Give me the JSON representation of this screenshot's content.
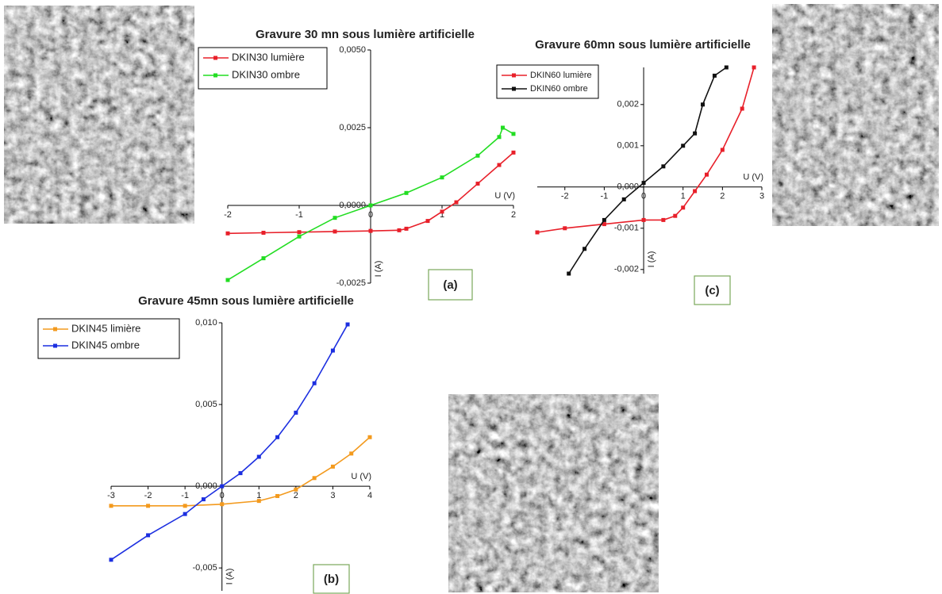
{
  "chart_data": [
    {
      "type": "line",
      "title": "Gravure 30 mn sous lumière artificielle",
      "panel_label": "(a)",
      "x_label": "U (V)",
      "y_label": "I (A)",
      "xlim": [
        -2,
        2
      ],
      "ylim": [
        -0.0025,
        0.005
      ],
      "xticks": [
        -2,
        -1,
        0,
        1,
        2
      ],
      "yticks": [
        {
          "value": -0.0025,
          "label": "-0,0025"
        },
        {
          "value": 0,
          "label": "0,0000"
        },
        {
          "value": 0.0025,
          "label": "0,0025"
        },
        {
          "value": 0.005,
          "label": "0,0050"
        }
      ],
      "series": [
        {
          "name": "DKIN30 lumière",
          "color": "#e8202a",
          "x": [
            -2,
            -1.5,
            -1,
            -0.5,
            0,
            0.4,
            0.5,
            0.8,
            1.0,
            1.2,
            1.5,
            1.8,
            2.0
          ],
          "values": [
            -0.0009,
            -0.00088,
            -0.00086,
            -0.00084,
            -0.00082,
            -0.0008,
            -0.00075,
            -0.0005,
            -0.0002,
            0.0001,
            0.0007,
            0.0013,
            0.0017
          ]
        },
        {
          "name": "DKIN30 ombre",
          "color": "#22dd22",
          "x": [
            -2,
            -1.5,
            -1,
            -0.5,
            0,
            0.5,
            1,
            1.5,
            1.8,
            1.85,
            2
          ],
          "values": [
            -0.0024,
            -0.0017,
            -0.001,
            -0.0004,
            0.0,
            0.0004,
            0.0009,
            0.0016,
            0.0022,
            0.0025,
            0.0023
          ]
        }
      ]
    },
    {
      "type": "line",
      "title": "Gravure 60mn sous lumière artificielle",
      "panel_label": "(c)",
      "x_label": "U (V)",
      "y_label": "I (A)",
      "xlim": [
        -2.7,
        3
      ],
      "ylim": [
        -0.0021,
        0.0029
      ],
      "xticks": [
        -2,
        -1,
        0,
        1,
        2,
        3
      ],
      "yticks": [
        {
          "value": -0.002,
          "label": "-0,002"
        },
        {
          "value": -0.001,
          "label": "-0,001"
        },
        {
          "value": 0,
          "label": "0,000"
        },
        {
          "value": 0.001,
          "label": "0,001"
        },
        {
          "value": 0.002,
          "label": "0,002"
        }
      ],
      "series": [
        {
          "name": "DKIN60 lumière",
          "color": "#e8202a",
          "x": [
            -2.7,
            -2,
            -1,
            0,
            0.5,
            0.8,
            1.0,
            1.3,
            1.6,
            2.0,
            2.5,
            2.8
          ],
          "values": [
            -0.0011,
            -0.001,
            -0.0009,
            -0.0008,
            -0.0008,
            -0.0007,
            -0.0005,
            -0.0001,
            0.0003,
            0.0009,
            0.0019,
            0.0029
          ]
        },
        {
          "name": "DKIN60 ombre",
          "color": "#111111",
          "x": [
            -1.9,
            -1.5,
            -1,
            -0.5,
            0,
            0.5,
            1.0,
            1.3,
            1.5,
            1.8,
            2.1
          ],
          "values": [
            -0.0021,
            -0.0015,
            -0.0008,
            -0.0003,
            0.0001,
            0.0005,
            0.001,
            0.0013,
            0.002,
            0.0027,
            0.0029
          ]
        }
      ]
    },
    {
      "type": "line",
      "title": "Gravure 45mn sous lumière artificielle",
      "panel_label": "(b)",
      "x_label": "U (V)",
      "y_label": "I (A)",
      "xlim": [
        -3,
        4
      ],
      "ylim": [
        -0.0064,
        0.01
      ],
      "xticks": [
        -3,
        -2,
        -1,
        0,
        1,
        2,
        3,
        4
      ],
      "yticks": [
        {
          "value": -0.005,
          "label": "-0,005"
        },
        {
          "value": 0,
          "label": "0,000"
        },
        {
          "value": 0.005,
          "label": "0,005"
        },
        {
          "value": 0.01,
          "label": "0,010"
        }
      ],
      "series": [
        {
          "name": "DKIN45 limière",
          "color": "#f39a1e",
          "x": [
            -3,
            -2,
            -1,
            0,
            1,
            1.5,
            2,
            2.5,
            3,
            3.5,
            4
          ],
          "values": [
            -0.0012,
            -0.0012,
            -0.0012,
            -0.0011,
            -0.0009,
            -0.0006,
            -0.0002,
            0.0005,
            0.0012,
            0.002,
            0.003
          ]
        },
        {
          "name": "DKIN45 ombre",
          "color": "#1c2fe0",
          "x": [
            -3,
            -2,
            -1,
            -0.5,
            0,
            0.5,
            1,
            1.5,
            2,
            2.5,
            3,
            3.4
          ],
          "values": [
            -0.0045,
            -0.003,
            -0.0017,
            -0.0008,
            0.0,
            0.0008,
            0.0018,
            0.003,
            0.0045,
            0.0063,
            0.0083,
            0.0099
          ]
        }
      ]
    }
  ]
}
